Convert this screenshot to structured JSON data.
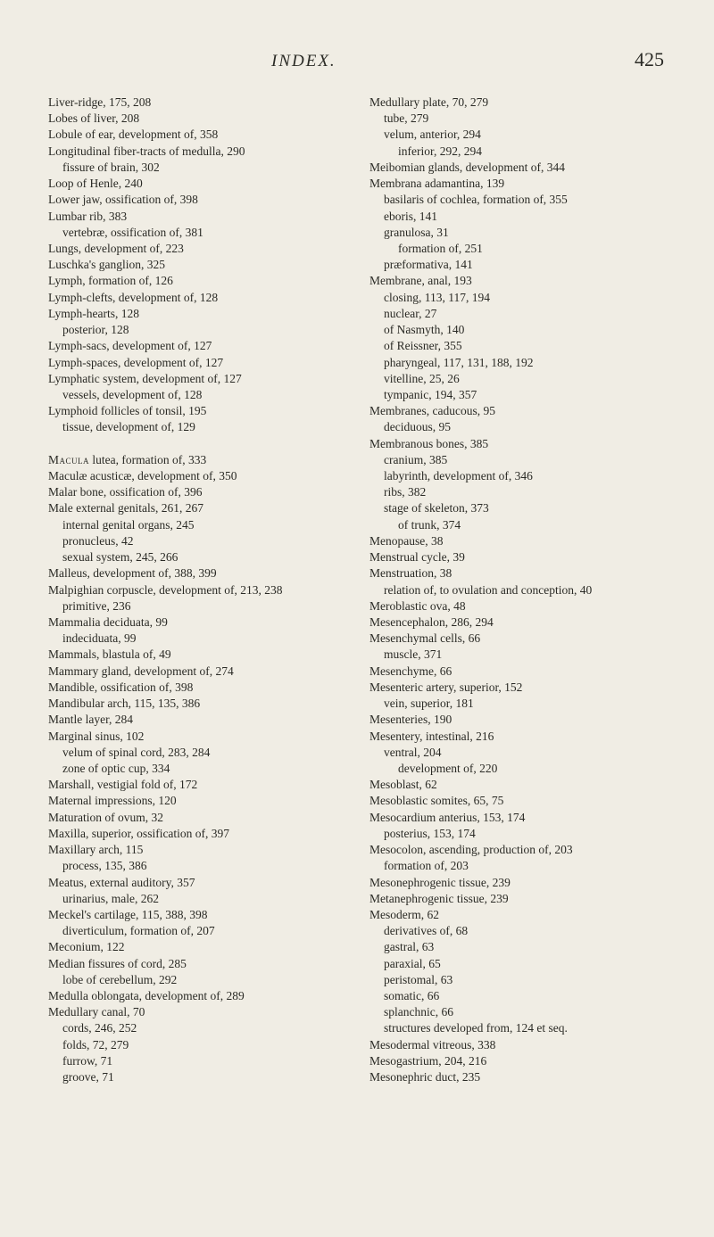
{
  "header": {
    "title": "INDEX.",
    "pageNumber": "425"
  },
  "leftColumn": [
    {
      "t": "Liver-ridge, 175, 208",
      "l": 0
    },
    {
      "t": "Lobes of liver, 208",
      "l": 0
    },
    {
      "t": "Lobule of ear, development of, 358",
      "l": 0
    },
    {
      "t": "Longitudinal fiber-tracts of medulla, 290",
      "l": 0
    },
    {
      "t": "fissure of brain, 302",
      "l": 1
    },
    {
      "t": "Loop of Henle, 240",
      "l": 0
    },
    {
      "t": "Lower jaw, ossification of, 398",
      "l": 0
    },
    {
      "t": "Lumbar rib, 383",
      "l": 0
    },
    {
      "t": "vertebræ, ossification of, 381",
      "l": 1
    },
    {
      "t": "Lungs, development of, 223",
      "l": 0
    },
    {
      "t": "Luschka's ganglion, 325",
      "l": 0
    },
    {
      "t": "Lymph, formation of, 126",
      "l": 0
    },
    {
      "t": "Lymph-clefts, development of, 128",
      "l": 0
    },
    {
      "t": "Lymph-hearts, 128",
      "l": 0
    },
    {
      "t": "posterior, 128",
      "l": 1
    },
    {
      "t": "Lymph-sacs, development of, 127",
      "l": 0
    },
    {
      "t": "Lymph-spaces, development of, 127",
      "l": 0
    },
    {
      "t": "Lymphatic system, development of, 127",
      "l": 0
    },
    {
      "t": "vessels, development of, 128",
      "l": 1
    },
    {
      "t": "Lymphoid follicles of tonsil, 195",
      "l": 0
    },
    {
      "t": "tissue, development of, 129",
      "l": 1
    },
    {
      "t": "",
      "l": 0
    },
    {
      "t": "Macula lutea, formation of, 333",
      "l": 0,
      "sc": "Macula"
    },
    {
      "t": "Maculæ acusticæ, development of, 350",
      "l": 0
    },
    {
      "t": "Malar bone, ossification of, 396",
      "l": 0
    },
    {
      "t": "Male external genitals, 261, 267",
      "l": 0
    },
    {
      "t": "internal genital organs, 245",
      "l": 1
    },
    {
      "t": "pronucleus, 42",
      "l": 1
    },
    {
      "t": "sexual system, 245, 266",
      "l": 1
    },
    {
      "t": "Malleus, development of, 388, 399",
      "l": 0
    },
    {
      "t": "Malpighian corpuscle, development of, 213, 238",
      "l": 0
    },
    {
      "t": "primitive, 236",
      "l": 1
    },
    {
      "t": "Mammalia deciduata, 99",
      "l": 0
    },
    {
      "t": "indeciduata, 99",
      "l": 1
    },
    {
      "t": "Mammals, blastula of, 49",
      "l": 0
    },
    {
      "t": "Mammary gland, development of, 274",
      "l": 0
    },
    {
      "t": "Mandible, ossification of, 398",
      "l": 0
    },
    {
      "t": "Mandibular arch, 115, 135, 386",
      "l": 0
    },
    {
      "t": "Mantle layer, 284",
      "l": 0
    },
    {
      "t": "Marginal sinus, 102",
      "l": 0
    },
    {
      "t": "velum of spinal cord, 283, 284",
      "l": 1
    },
    {
      "t": "zone of optic cup, 334",
      "l": 1
    },
    {
      "t": "Marshall, vestigial fold of, 172",
      "l": 0
    },
    {
      "t": "Maternal impressions, 120",
      "l": 0
    },
    {
      "t": "Maturation of ovum, 32",
      "l": 0
    },
    {
      "t": "Maxilla, superior, ossification of, 397",
      "l": 0
    },
    {
      "t": "Maxillary arch, 115",
      "l": 0
    },
    {
      "t": "process, 135, 386",
      "l": 1
    },
    {
      "t": "Meatus, external auditory, 357",
      "l": 0
    },
    {
      "t": "urinarius, male, 262",
      "l": 1
    },
    {
      "t": "Meckel's cartilage, 115, 388, 398",
      "l": 0
    },
    {
      "t": "diverticulum, formation of, 207",
      "l": 1
    },
    {
      "t": "Meconium, 122",
      "l": 0
    },
    {
      "t": "Median fissures of cord, 285",
      "l": 0
    },
    {
      "t": "lobe of cerebellum, 292",
      "l": 1
    },
    {
      "t": "Medulla oblongata, development of, 289",
      "l": 0
    },
    {
      "t": "Medullary canal, 70",
      "l": 0
    },
    {
      "t": "cords, 246, 252",
      "l": 1
    },
    {
      "t": "folds, 72, 279",
      "l": 1
    },
    {
      "t": "furrow, 71",
      "l": 1
    },
    {
      "t": "groove, 71",
      "l": 1
    }
  ],
  "rightColumn": [
    {
      "t": "Medullary plate, 70, 279",
      "l": 0
    },
    {
      "t": "tube, 279",
      "l": 1
    },
    {
      "t": "velum, anterior, 294",
      "l": 1
    },
    {
      "t": "inferior, 292, 294",
      "l": 2
    },
    {
      "t": "Meibomian glands, development of, 344",
      "l": 0
    },
    {
      "t": "Membrana adamantina, 139",
      "l": 0
    },
    {
      "t": "basilaris of cochlea, formation of, 355",
      "l": 1
    },
    {
      "t": "eboris, 141",
      "l": 1
    },
    {
      "t": "granulosa, 31",
      "l": 1
    },
    {
      "t": "formation of, 251",
      "l": 2
    },
    {
      "t": "præformativa, 141",
      "l": 1
    },
    {
      "t": "Membrane, anal, 193",
      "l": 0
    },
    {
      "t": "closing, 113, 117, 194",
      "l": 1
    },
    {
      "t": "nuclear, 27",
      "l": 1
    },
    {
      "t": "of Nasmyth, 140",
      "l": 1
    },
    {
      "t": "of Reissner, 355",
      "l": 1
    },
    {
      "t": "pharyngeal, 117, 131, 188, 192",
      "l": 1
    },
    {
      "t": "vitelline, 25, 26",
      "l": 1
    },
    {
      "t": "tympanic, 194, 357",
      "l": 1
    },
    {
      "t": "Membranes, caducous, 95",
      "l": 0
    },
    {
      "t": "deciduous, 95",
      "l": 1
    },
    {
      "t": "Membranous bones, 385",
      "l": 0
    },
    {
      "t": "cranium, 385",
      "l": 1
    },
    {
      "t": "labyrinth, development of, 346",
      "l": 1
    },
    {
      "t": "ribs, 382",
      "l": 1
    },
    {
      "t": "stage of skeleton, 373",
      "l": 1
    },
    {
      "t": "of trunk, 374",
      "l": 2
    },
    {
      "t": "Menopause, 38",
      "l": 0
    },
    {
      "t": "Menstrual cycle, 39",
      "l": 0
    },
    {
      "t": "Menstruation, 38",
      "l": 0
    },
    {
      "t": "relation of, to ovulation and conception, 40",
      "l": 1
    },
    {
      "t": "Meroblastic ova, 48",
      "l": 0
    },
    {
      "t": "Mesencephalon, 286, 294",
      "l": 0
    },
    {
      "t": "Mesenchymal cells, 66",
      "l": 0
    },
    {
      "t": "muscle, 371",
      "l": 1
    },
    {
      "t": "Mesenchyme, 66",
      "l": 0
    },
    {
      "t": "Mesenteric artery, superior, 152",
      "l": 0
    },
    {
      "t": "vein, superior, 181",
      "l": 1
    },
    {
      "t": "Mesenteries, 190",
      "l": 0
    },
    {
      "t": "Mesentery, intestinal, 216",
      "l": 0
    },
    {
      "t": "ventral, 204",
      "l": 1
    },
    {
      "t": "development of, 220",
      "l": 2
    },
    {
      "t": "Mesoblast, 62",
      "l": 0
    },
    {
      "t": "Mesoblastic somites, 65, 75",
      "l": 0
    },
    {
      "t": "Mesocardium anterius, 153, 174",
      "l": 0
    },
    {
      "t": "posterius, 153, 174",
      "l": 1
    },
    {
      "t": "Mesocolon, ascending, production of, 203",
      "l": 0
    },
    {
      "t": "formation of, 203",
      "l": 1
    },
    {
      "t": "Mesonephrogenic tissue, 239",
      "l": 0
    },
    {
      "t": "Metanephrogenic tissue, 239",
      "l": 0
    },
    {
      "t": "Mesoderm, 62",
      "l": 0
    },
    {
      "t": "derivatives of, 68",
      "l": 1
    },
    {
      "t": "gastral, 63",
      "l": 1
    },
    {
      "t": "paraxial, 65",
      "l": 1
    },
    {
      "t": "peristomal, 63",
      "l": 1
    },
    {
      "t": "somatic, 66",
      "l": 1
    },
    {
      "t": "splanchnic, 66",
      "l": 1
    },
    {
      "t": "structures developed from, 124 et seq.",
      "l": 1
    },
    {
      "t": "Mesodermal vitreous, 338",
      "l": 0
    },
    {
      "t": "Mesogastrium, 204, 216",
      "l": 0
    },
    {
      "t": "Mesonephric duct, 235",
      "l": 0
    }
  ]
}
